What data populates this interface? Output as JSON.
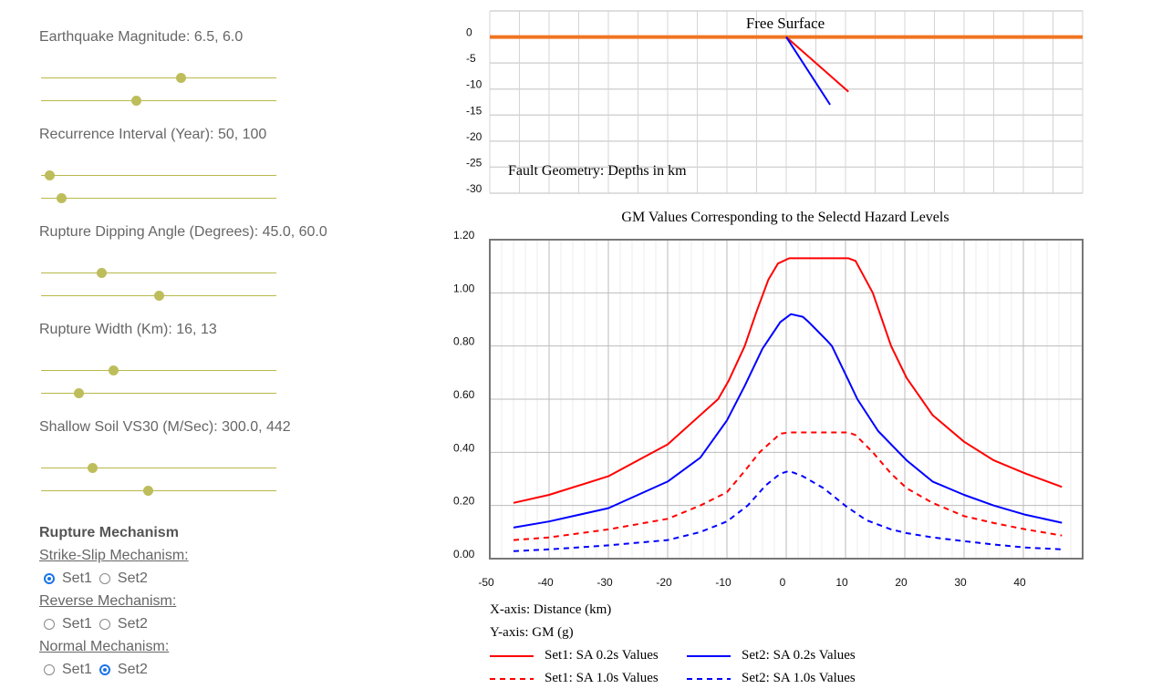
{
  "controls": {
    "sliders": [
      {
        "label": "Earthquake Magnitude: 6.5, 6.0",
        "positions": [
          0.593,
          0.403
        ]
      },
      {
        "label": "Recurrence Interval (Year): 50, 100",
        "positions": [
          0.035,
          0.085
        ]
      },
      {
        "label": "Rupture Dipping Angle (Degrees): 45.0, 60.0",
        "positions": [
          0.256,
          0.5
        ]
      },
      {
        "label": "Rupture Width (Km): 16, 13",
        "positions": [
          0.306,
          0.159
        ]
      },
      {
        "label": "Shallow Soil VS30 (M/Sec): 300.0, 442",
        "positions": [
          0.217,
          0.453
        ]
      }
    ],
    "mechanism": {
      "title": "Rupture Mechanism",
      "groups": [
        {
          "label": "Strike-Slip Mechanism:",
          "options": [
            "Set1",
            "Set2"
          ],
          "selected": "Set1"
        },
        {
          "label": "Reverse Mechanism:",
          "options": [
            "Set1",
            "Set2"
          ],
          "selected": null
        },
        {
          "label": "Normal Mechanism:",
          "options": [
            "Set1",
            "Set2"
          ],
          "selected": "Set2"
        }
      ]
    }
  },
  "chart_data": [
    {
      "type": "line",
      "title": "Free Surface",
      "annotation": "Fault Geometry: Depths in km",
      "xlim": [
        -50,
        50
      ],
      "ylim": [
        -30,
        5
      ],
      "yticks": [
        "0",
        "-5",
        "-10",
        "-15",
        "-20",
        "-25",
        "-30"
      ],
      "ytick_values": [
        0,
        -5,
        -10,
        -15,
        -20,
        -25,
        -30
      ],
      "surface": {
        "y": 0,
        "color": "#f07522"
      },
      "series": [
        {
          "name": "Set1 fault",
          "color": "#ff0000",
          "x": [
            0,
            10.5
          ],
          "y": [
            0,
            -10.5
          ]
        },
        {
          "name": "Set2 fault",
          "color": "#0000ff",
          "x": [
            0,
            7.4
          ],
          "y": [
            0,
            -13
          ]
        }
      ]
    },
    {
      "type": "line",
      "title": "GM Values Corresponding to the Selectd Hazard Levels",
      "xlabel": "X-axis: Distance (km)",
      "ylabel": "Y-axis: GM (g)",
      "xlim": [
        -50,
        50
      ],
      "ylim": [
        0,
        1.2
      ],
      "xticks": [
        "-50",
        "-40",
        "-30",
        "-20",
        "-10",
        "0",
        "10",
        "20",
        "30",
        "40"
      ],
      "xtick_values": [
        -50,
        -40,
        -30,
        -20,
        -10,
        0,
        10,
        20,
        30,
        40
      ],
      "yticks": [
        "1.20",
        "1.00",
        "0.80",
        "0.60",
        "0.40",
        "0.20",
        "0.00"
      ],
      "ytick_values": [
        1.2,
        1.0,
        0.8,
        0.6,
        0.4,
        0.2,
        0.0
      ],
      "series": [
        {
          "name": "Set1: SA 0.2s Values",
          "color": "#ff0000",
          "dash": false,
          "x": [
            -46,
            -40,
            -30,
            -20,
            -11.5,
            -9.7,
            -7,
            -5,
            -3,
            -1.4,
            0.5,
            10.5,
            11.7,
            14.6,
            17.7,
            20.3,
            24.7,
            30,
            35,
            40.4,
            46.5
          ],
          "y": [
            0.21,
            0.24,
            0.31,
            0.43,
            0.6,
            0.67,
            0.8,
            0.93,
            1.05,
            1.11,
            1.13,
            1.13,
            1.12,
            1.0,
            0.8,
            0.68,
            0.54,
            0.44,
            0.37,
            0.32,
            0.27
          ]
        },
        {
          "name": "Set2: SA 0.2s Values",
          "color": "#0000ff",
          "dash": false,
          "x": [
            -46,
            -40,
            -30,
            -20,
            -14.5,
            -10,
            -7,
            -4,
            -1,
            0.8,
            2.8,
            3.8,
            6.9,
            7.7,
            10.5,
            12,
            15.5,
            20.3,
            24.7,
            30,
            35,
            40.4,
            46.5
          ],
          "y": [
            0.117,
            0.14,
            0.19,
            0.29,
            0.38,
            0.52,
            0.65,
            0.79,
            0.89,
            0.92,
            0.91,
            0.89,
            0.82,
            0.8,
            0.67,
            0.6,
            0.48,
            0.37,
            0.29,
            0.24,
            0.2,
            0.165,
            0.135
          ]
        },
        {
          "name": "Set1: SA 1.0s Values",
          "color": "#ff0000",
          "dash": true,
          "x": [
            -46,
            -40,
            -30,
            -20,
            -14.5,
            -10,
            -7,
            -4.5,
            -1,
            0.5,
            10.5,
            11.7,
            14.6,
            17.7,
            20.3,
            24.7,
            30,
            35,
            40.4,
            46.5
          ],
          "y": [
            0.07,
            0.08,
            0.11,
            0.15,
            0.2,
            0.25,
            0.33,
            0.4,
            0.47,
            0.475,
            0.475,
            0.465,
            0.4,
            0.32,
            0.265,
            0.21,
            0.16,
            0.134,
            0.11,
            0.087
          ]
        },
        {
          "name": "Set2: SA 1.0s Values",
          "color": "#0000ff",
          "dash": true,
          "x": [
            -46,
            -40,
            -30,
            -20,
            -14.5,
            -10,
            -6.5,
            -3.5,
            -1,
            0.5,
            2.8,
            6.3,
            10.2,
            13.5,
            17.7,
            20.3,
            24.7,
            30,
            35,
            40.4,
            46.5
          ],
          "y": [
            0.028,
            0.035,
            0.05,
            0.07,
            0.1,
            0.14,
            0.2,
            0.275,
            0.32,
            0.33,
            0.31,
            0.265,
            0.195,
            0.145,
            0.11,
            0.096,
            0.08,
            0.066,
            0.053,
            0.042,
            0.035
          ]
        }
      ],
      "legend": [
        "Set1: SA 0.2s Values",
        "Set2: SA 0.2s Values",
        "Set1: SA 1.0s Values",
        "Set2: SA 1.0s Values"
      ]
    }
  ]
}
